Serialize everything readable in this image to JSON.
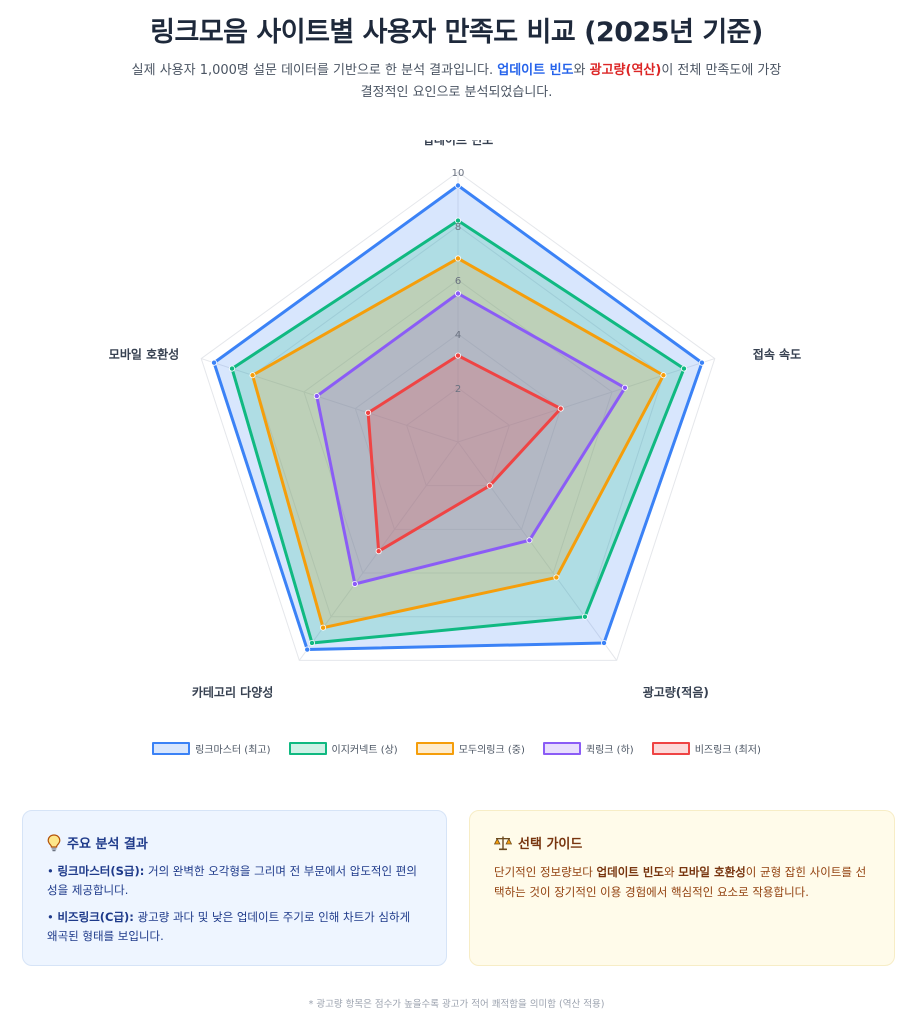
{
  "header": {
    "title": "링크모음 사이트별 사용자 만족도 비교 (2025년 기준)",
    "subtitle_part1": "실제 사용자 1,000명 설문 데이터를 기반으로 한 분석 결과입니다. ",
    "subtitle_hl1": "업데이트 빈도",
    "subtitle_part2": "와 ",
    "subtitle_hl2": "광고량(역산)",
    "subtitle_part3": "이 전체 만족도에 가장 결정적인 요인으로 분석되었습니다."
  },
  "chart_data": {
    "type": "radar",
    "axes": [
      "업데이트 빈도",
      "접속 속도",
      "광고량(적음)",
      "카테고리 다양성",
      "모바일 호환성"
    ],
    "rlim": [
      0,
      10
    ],
    "ticks": [
      2,
      4,
      6,
      8,
      10
    ],
    "grid": true,
    "legend_position": "bottom",
    "series": [
      {
        "name": "링크마스터 (최고)",
        "values": [
          9.5,
          9.5,
          9.2,
          9.5,
          9.5
        ],
        "color": "#3b82f6"
      },
      {
        "name": "이지커넥트 (상)",
        "values": [
          8.2,
          8.8,
          8.0,
          9.2,
          8.8
        ],
        "color": "#10b981"
      },
      {
        "name": "모두의링크 (중)",
        "values": [
          6.8,
          8.0,
          6.2,
          8.5,
          8.0
        ],
        "color": "#f59e0b"
      },
      {
        "name": "퀵링크 (하)",
        "values": [
          5.5,
          6.5,
          4.5,
          6.5,
          5.5
        ],
        "color": "#8b5cf6"
      },
      {
        "name": "비즈링크 (최저)",
        "values": [
          3.2,
          4.0,
          2.0,
          5.0,
          3.5
        ],
        "color": "#ef4444"
      }
    ]
  },
  "insights": {
    "icon": "lightbulb-icon",
    "title": "주요 분석 결과",
    "item1_bold": "링크마스터(S급):",
    "item1_text": " 거의 완벽한 오각형을 그리며 전 부문에서 압도적인 편의성을 제공합니다.",
    "item2_bold": "비즈링크(C급):",
    "item2_text": " 광고량 과다 및 낮은 업데이트 주기로 인해 차트가 심하게 왜곡된 형태를 보입니다."
  },
  "guide": {
    "icon": "scale-icon",
    "title": "선택 가이드",
    "text1": "단기적인 정보량보다 ",
    "bold1": "업데이트 빈도",
    "text2": "와 ",
    "bold2": "모바일 호환성",
    "text3": "이 균형 잡힌 사이트를 선택하는 것이 장기적인 이용 경험에서 핵심적인 요소로 작용합니다."
  },
  "footnote": "* 광고량 항목은 점수가 높을수록 광고가 적어 쾌적함을 의미함 (역산 적용)"
}
